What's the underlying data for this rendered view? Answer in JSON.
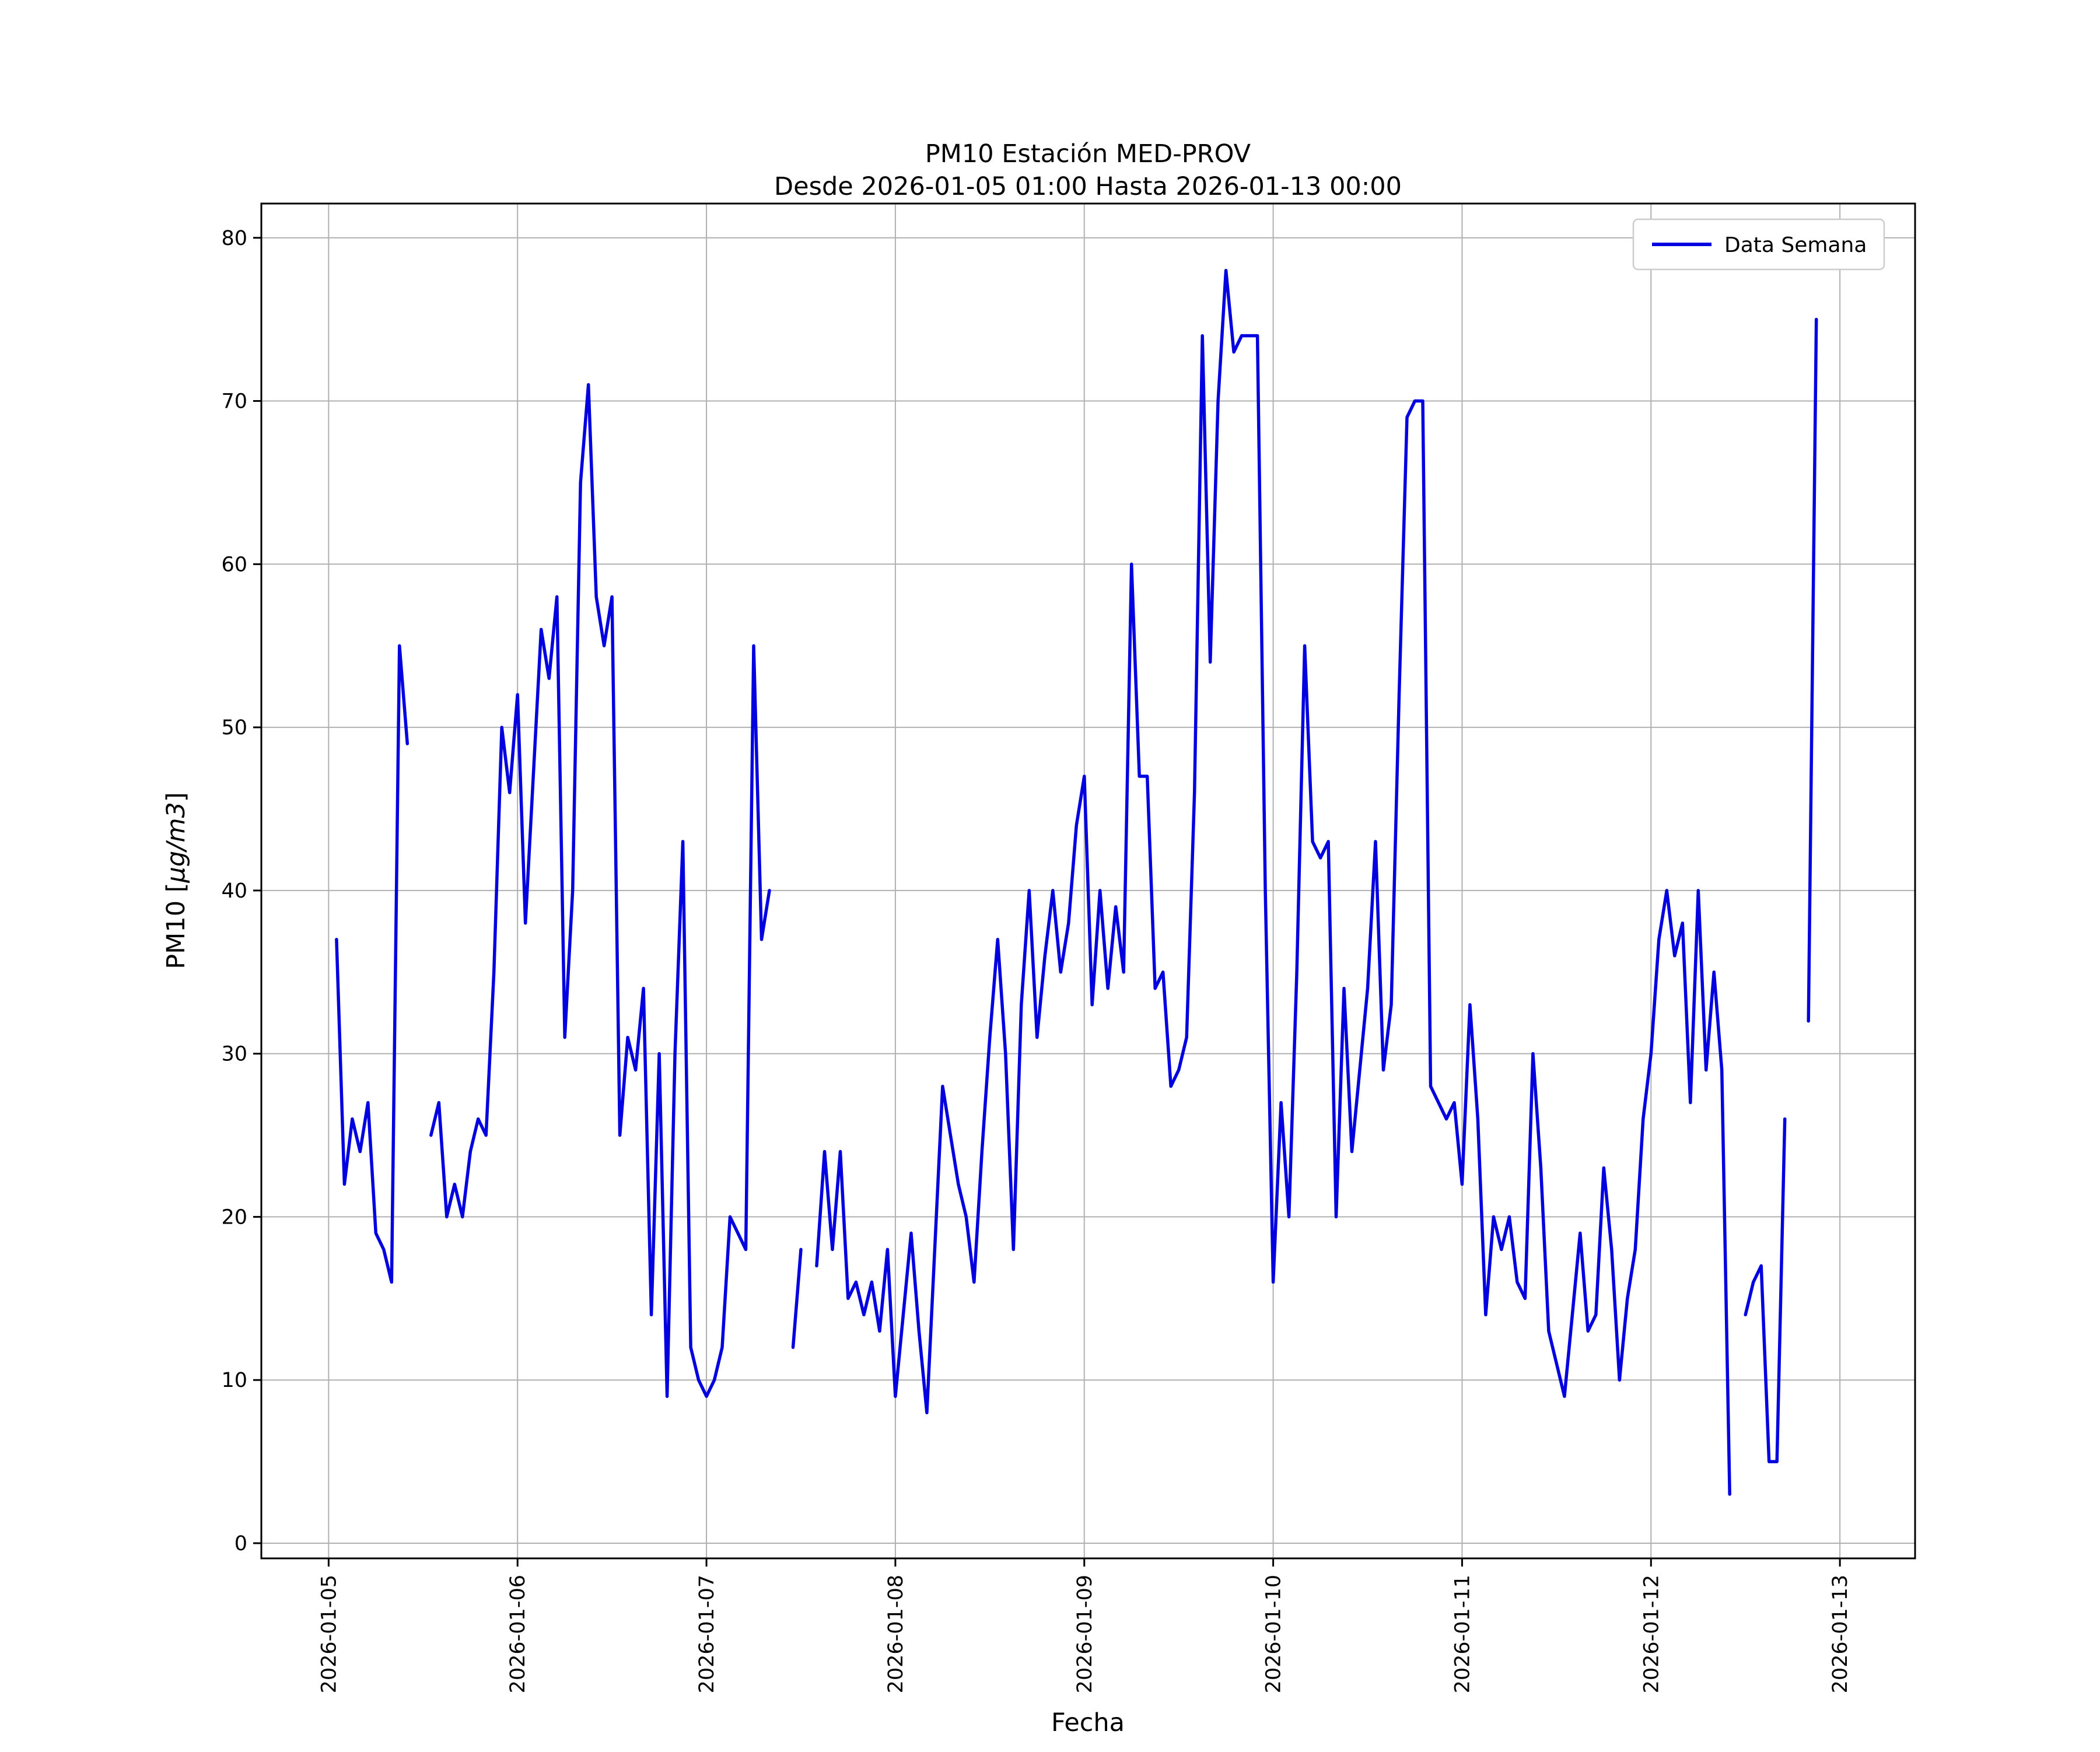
{
  "figure": {
    "title_line1": "PM10 Estación MED-PROV",
    "title_line2": "Desde 2026-01-05 01:00 Hasta 2026-01-13 00:00",
    "xlabel": "Fecha",
    "ylabel_prefix": "PM10 [",
    "ylabel_units": "µg/m3",
    "ylabel_suffix": "]",
    "legend_label": "Data Semana",
    "line_color": "#0202e0",
    "grid_color": "#b0b0b0",
    "background_color": "#ffffff"
  },
  "chart_data": {
    "type": "line",
    "title": "PM10 Estación MED-PROV\nDesde 2026-01-05 01:00 Hasta 2026-01-13 00:00",
    "xlabel": "Fecha",
    "ylabel": "PM10 [µg/m3]",
    "legend": [
      "Data Semana"
    ],
    "legend_position": "upper right",
    "grid": true,
    "series_name": "Data Semana",
    "start_time": "2026-01-05 01:00",
    "end_time": "2026-01-13 00:00",
    "interval_hours": 1,
    "x_tick_labels": [
      "2026-01-05",
      "2026-01-06",
      "2026-01-07",
      "2026-01-08",
      "2026-01-09",
      "2026-01-10",
      "2026-01-11",
      "2026-01-12",
      "2026-01-13"
    ],
    "x_tick_hours": [
      0,
      24,
      48,
      72,
      96,
      120,
      144,
      168,
      192
    ],
    "y_ticks": [
      0,
      10,
      20,
      30,
      40,
      50,
      60,
      70,
      80
    ],
    "x_range_hours": [
      -8.55,
      201.55
    ],
    "y_range": [
      -0.93,
      82.1
    ],
    "values": [
      37,
      22,
      26,
      24,
      27,
      19,
      18,
      16,
      55,
      49,
      null,
      null,
      25,
      27,
      20,
      22,
      20,
      24,
      26,
      25,
      35,
      50,
      46,
      52,
      38,
      47,
      56,
      53,
      58,
      31,
      40,
      65,
      71,
      58,
      55,
      58,
      25,
      31,
      29,
      34,
      14,
      30,
      9,
      30,
      43,
      12,
      10,
      9,
      10,
      12,
      20,
      19,
      18,
      55,
      37,
      40,
      null,
      null,
      12,
      18,
      null,
      17,
      24,
      18,
      24,
      15,
      16,
      14,
      16,
      13,
      18,
      9,
      14,
      19,
      13,
      8,
      18,
      28,
      25,
      22,
      20,
      16,
      24,
      31,
      37,
      30,
      18,
      33,
      40,
      31,
      36,
      40,
      35,
      38,
      44,
      47,
      33,
      40,
      34,
      39,
      35,
      60,
      47,
      47,
      34,
      35,
      28,
      29,
      31,
      46,
      74,
      54,
      70,
      78,
      73,
      74,
      74,
      74,
      40,
      16,
      27,
      20,
      35,
      55,
      43,
      42,
      43,
      20,
      34,
      24,
      29,
      34,
      43,
      29,
      33,
      52,
      69,
      70,
      70,
      28,
      27,
      26,
      27,
      22,
      33,
      26,
      14,
      20,
      18,
      20,
      16,
      15,
      30,
      23,
      13,
      11,
      9,
      14,
      19,
      13,
      14,
      23,
      18,
      10,
      15,
      18,
      26,
      30,
      37,
      40,
      36,
      38,
      27,
      40,
      29,
      35,
      29,
      3,
      null,
      14,
      16,
      17,
      5,
      5,
      26,
      null,
      null,
      32,
      75,
      null,
      null,
      null
    ]
  }
}
